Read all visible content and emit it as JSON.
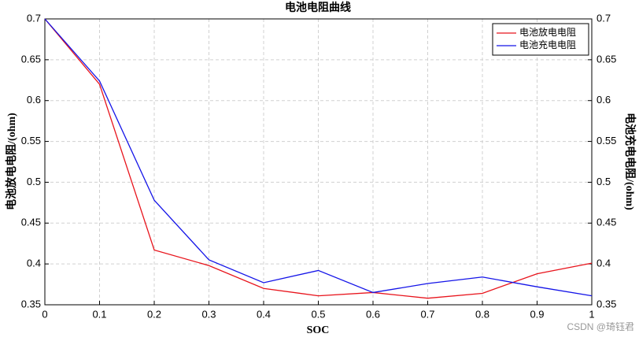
{
  "chart_data": {
    "type": "line",
    "title": "电池电阻曲线",
    "x_label": "SOC",
    "y_label": "电池放电电阻/(ohm)",
    "y2_label": "电池充电电阻/(ohm)",
    "x": [
      0,
      0.1,
      0.2,
      0.3,
      0.4,
      0.5,
      0.6,
      0.7,
      0.8,
      0.9,
      1
    ],
    "series": [
      {
        "name": "电池放电电阻",
        "color": "#e8141c",
        "values": [
          0.7,
          0.62,
          0.417,
          0.398,
          0.37,
          0.361,
          0.365,
          0.358,
          0.364,
          0.388,
          0.401
        ]
      },
      {
        "name": "电池充电电阻",
        "color": "#1414e8",
        "axis": "y2",
        "values": [
          0.7,
          0.624,
          0.478,
          0.405,
          0.377,
          0.392,
          0.365,
          0.376,
          0.384,
          0.372,
          0.361
        ]
      }
    ],
    "xlim": [
      0,
      1
    ],
    "xticks": [
      0,
      0.1,
      0.2,
      0.3,
      0.4,
      0.5,
      0.6,
      0.7,
      0.8,
      0.9,
      1
    ],
    "ylim": [
      0.35,
      0.7
    ],
    "yticks": [
      0.35,
      0.4,
      0.45,
      0.5,
      0.55,
      0.6,
      0.65,
      0.7
    ],
    "y2lim": [
      0.35,
      0.7
    ],
    "y2ticks": [
      0.35,
      0.4,
      0.45,
      0.5,
      0.55,
      0.6,
      0.65,
      0.7
    ],
    "grid": true,
    "legend": "upper-right",
    "watermark": "CSDN @琦钰君"
  }
}
